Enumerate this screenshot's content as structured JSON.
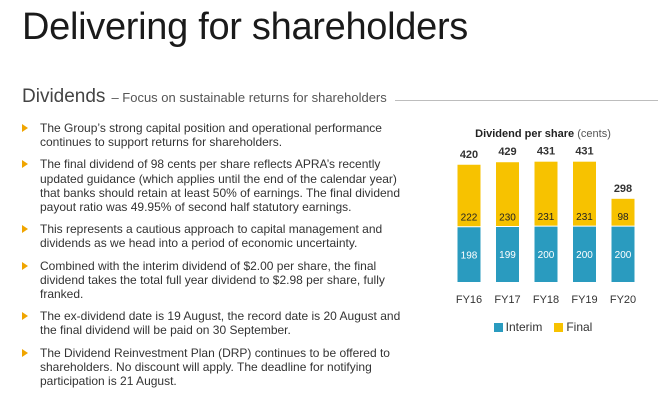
{
  "page": {
    "title": "Delivering for shareholders",
    "section_heading": "Dividends",
    "section_subheading": "– Focus on sustainable returns for shareholders"
  },
  "bullets": [
    "The Group’s strong capital position and operational performance continues to support returns for shareholders.",
    "The final dividend of 98 cents per share reflects APRA’s recently updated guidance (which applies until the end of the calendar year) that banks should retain at least 50% of earnings. The final dividend payout ratio was 49.95% of second half statutory earnings.",
    "This represents a cautious approach to capital management and dividends as we head into a period of economic uncertainty.",
    "Combined with the interim dividend of $2.00 per share, the final dividend takes the total full year dividend to $2.98 per share, fully franked.",
    "The ex-dividend date is 19 August, the record date is 20 August and the final dividend will be paid on 30 September.",
    "The Dividend Reinvestment Plan (DRP) continues to be offered to shareholders. No discount will apply. The deadline for notifying participation is 21 August."
  ],
  "colors": {
    "interim": "#2a9bbf",
    "final": "#f7c200",
    "bullet": "#f0a500"
  },
  "chart_data": {
    "type": "bar",
    "stacked": true,
    "title": "Dividend per share",
    "title_unit": "(cents)",
    "categories": [
      "FY16",
      "FY17",
      "FY18",
      "FY19",
      "FY20"
    ],
    "series": [
      {
        "name": "Interim",
        "values": [
          198,
          199,
          200,
          200,
          200
        ]
      },
      {
        "name": "Final",
        "values": [
          222,
          230,
          231,
          231,
          98
        ]
      }
    ],
    "totals": [
      420,
      429,
      431,
      431,
      298
    ],
    "legend": "bottom-center",
    "grid": false,
    "ylim": [
      0,
      480
    ]
  }
}
